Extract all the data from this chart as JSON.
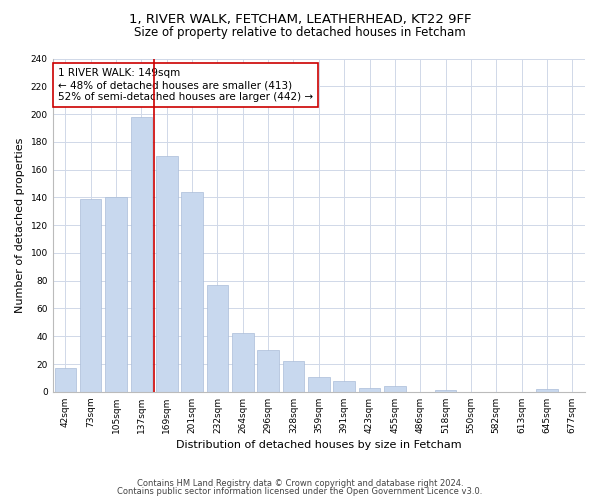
{
  "title": "1, RIVER WALK, FETCHAM, LEATHERHEAD, KT22 9FF",
  "subtitle": "Size of property relative to detached houses in Fetcham",
  "xlabel": "Distribution of detached houses by size in Fetcham",
  "ylabel": "Number of detached properties",
  "categories": [
    "42sqm",
    "73sqm",
    "105sqm",
    "137sqm",
    "169sqm",
    "201sqm",
    "232sqm",
    "264sqm",
    "296sqm",
    "328sqm",
    "359sqm",
    "391sqm",
    "423sqm",
    "455sqm",
    "486sqm",
    "518sqm",
    "550sqm",
    "582sqm",
    "613sqm",
    "645sqm",
    "677sqm"
  ],
  "values": [
    17,
    139,
    140,
    198,
    170,
    144,
    77,
    42,
    30,
    22,
    11,
    8,
    3,
    4,
    0,
    1,
    0,
    0,
    0,
    2,
    0
  ],
  "bar_color": "#c8d8ee",
  "bar_edgecolor": "#aabdd8",
  "vline_x_index": 3,
  "vline_color": "#cc0000",
  "annotation_text": "1 RIVER WALK: 149sqm\n← 48% of detached houses are smaller (413)\n52% of semi-detached houses are larger (442) →",
  "annotation_box_color": "#ffffff",
  "annotation_box_edgecolor": "#cc0000",
  "ylim": [
    0,
    240
  ],
  "yticks": [
    0,
    20,
    40,
    60,
    80,
    100,
    120,
    140,
    160,
    180,
    200,
    220,
    240
  ],
  "background_color": "#ffffff",
  "grid_color": "#d0d8e8",
  "footer_line1": "Contains HM Land Registry data © Crown copyright and database right 2024.",
  "footer_line2": "Contains public sector information licensed under the Open Government Licence v3.0.",
  "title_fontsize": 9.5,
  "subtitle_fontsize": 8.5,
  "xlabel_fontsize": 8,
  "ylabel_fontsize": 8,
  "tick_fontsize": 6.5,
  "annotation_fontsize": 7.5,
  "footer_fontsize": 6
}
